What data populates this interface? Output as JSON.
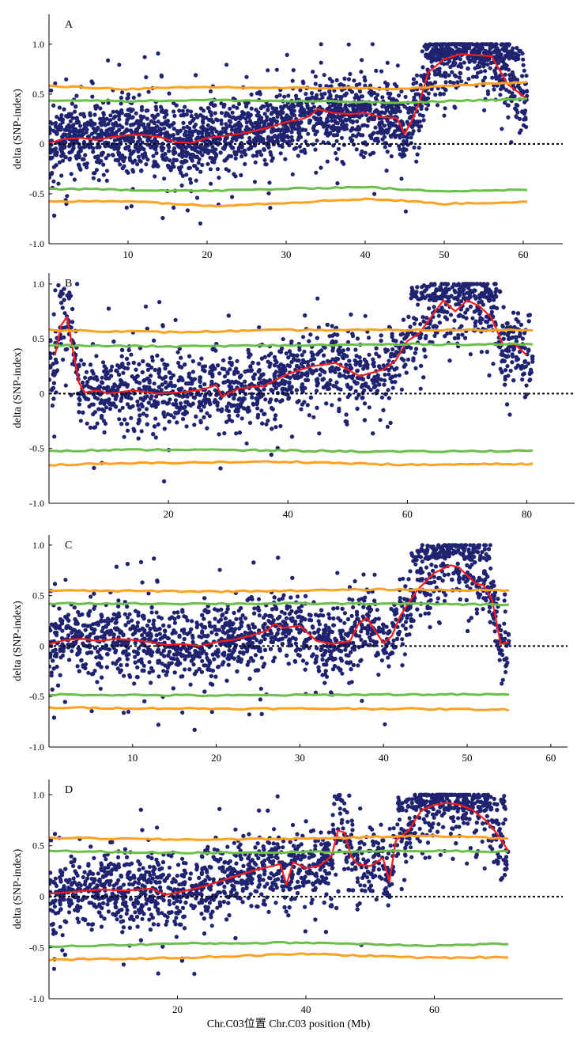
{
  "figure": {
    "xlabel": "Chr.C03位置 Chr.C03 position (Mb)",
    "ylabel": "delta (SNP-index)"
  },
  "colors": {
    "snp_points": "#1f2370",
    "delta_line": "#ff1a1a",
    "ci95": "#6cc04a",
    "ci99": "#ffa020",
    "zero_line": "#000000"
  },
  "chart_data": [
    {
      "type": "scatter",
      "panel": "A",
      "xlim": [
        0,
        65
      ],
      "ylim": [
        -1.0,
        1.3
      ],
      "xticks": [
        10,
        20,
        30,
        40,
        50,
        60
      ],
      "yticks": [
        -1.0,
        -0.5,
        0,
        0.5,
        1.0
      ],
      "ytick_labels": [
        "-1.0",
        "-0.5",
        "0",
        "0.5",
        "1.0"
      ],
      "scatter_xmax": 60.5,
      "series": [
        {
          "role": "delta",
          "x": [
            0,
            2,
            4,
            6,
            8,
            10,
            12,
            14,
            16,
            18,
            20,
            22,
            24,
            26,
            28,
            30,
            32,
            33,
            34,
            36,
            38,
            40,
            42,
            44,
            45,
            46,
            47,
            48,
            50,
            52,
            54,
            56,
            58,
            60.5
          ],
          "y": [
            0.01,
            0.05,
            0.06,
            0.04,
            0.07,
            0.09,
            0.09,
            0.07,
            0.02,
            0.01,
            0.06,
            0.08,
            0.1,
            0.13,
            0.17,
            0.22,
            0.25,
            0.28,
            0.35,
            0.31,
            0.3,
            0.31,
            0.27,
            0.26,
            0.1,
            0.25,
            0.45,
            0.72,
            0.85,
            0.9,
            0.89,
            0.88,
            0.6,
            0.45
          ]
        },
        {
          "role": "ci95_upper",
          "x": [
            0,
            10,
            20,
            30,
            40,
            45,
            50,
            60.5
          ],
          "y": [
            0.44,
            0.43,
            0.44,
            0.43,
            0.42,
            0.41,
            0.43,
            0.45
          ]
        },
        {
          "role": "ci99_upper",
          "x": [
            0,
            10,
            20,
            30,
            40,
            45,
            50,
            60.5
          ],
          "y": [
            0.58,
            0.55,
            0.57,
            0.56,
            0.56,
            0.55,
            0.58,
            0.62
          ]
        },
        {
          "role": "ci95_lower",
          "x": [
            0,
            10,
            20,
            30,
            40,
            45,
            50,
            60.5
          ],
          "y": [
            -0.45,
            -0.46,
            -0.47,
            -0.45,
            -0.43,
            -0.46,
            -0.47,
            -0.46
          ]
        },
        {
          "role": "ci99_lower",
          "x": [
            0,
            10,
            20,
            30,
            40,
            45,
            50,
            60.5
          ],
          "y": [
            -0.58,
            -0.57,
            -0.62,
            -0.59,
            -0.55,
            -0.57,
            -0.6,
            -0.58
          ]
        }
      ]
    },
    {
      "type": "scatter",
      "panel": "B",
      "xlim": [
        0,
        88
      ],
      "ylim": [
        -1.0,
        1.1
      ],
      "xticks": [
        20,
        40,
        60,
        80
      ],
      "yticks": [
        -1.0,
        -0.5,
        0,
        0.5,
        1.0
      ],
      "ytick_labels": [
        "-1.0",
        "-0.5",
        "0",
        "0.5",
        "1.0"
      ],
      "scatter_xmax": 81,
      "series": [
        {
          "role": "delta",
          "x": [
            1,
            2,
            3,
            4,
            5,
            6,
            8,
            10,
            14,
            18,
            22,
            26,
            28,
            29,
            30,
            32,
            36,
            40,
            44,
            48,
            52,
            56,
            58,
            60,
            62,
            64,
            66,
            67,
            68,
            70,
            72,
            74,
            76,
            78,
            80
          ],
          "y": [
            0.35,
            0.62,
            0.7,
            0.4,
            0.1,
            0.01,
            0.03,
            0.0,
            0.03,
            0.0,
            0.01,
            0.04,
            0.08,
            -0.03,
            0.0,
            0.05,
            0.07,
            0.18,
            0.25,
            0.28,
            0.16,
            0.22,
            0.3,
            0.48,
            0.55,
            0.7,
            0.85,
            0.8,
            0.75,
            0.85,
            0.8,
            0.7,
            0.45,
            0.45,
            0.35
          ]
        },
        {
          "role": "ci95_upper",
          "x": [
            0,
            20,
            40,
            60,
            81
          ],
          "y": [
            0.44,
            0.43,
            0.44,
            0.45,
            0.45
          ]
        },
        {
          "role": "ci99_upper",
          "x": [
            0,
            20,
            40,
            60,
            81
          ],
          "y": [
            0.58,
            0.56,
            0.58,
            0.58,
            0.58
          ]
        },
        {
          "role": "ci95_lower",
          "x": [
            0,
            20,
            40,
            60,
            81
          ],
          "y": [
            -0.52,
            -0.51,
            -0.52,
            -0.53,
            -0.52
          ]
        },
        {
          "role": "ci99_lower",
          "x": [
            0,
            20,
            40,
            60,
            81
          ],
          "y": [
            -0.65,
            -0.63,
            -0.62,
            -0.65,
            -0.64
          ]
        }
      ]
    },
    {
      "type": "scatter",
      "panel": "C",
      "xlim": [
        0,
        62
      ],
      "ylim": [
        -1.0,
        1.1
      ],
      "xticks": [
        10,
        20,
        30,
        40,
        50,
        60
      ],
      "yticks": [
        -1.0,
        -0.5,
        0,
        0.5,
        1.0
      ],
      "ytick_labels": [
        "-1.0",
        "-0.5",
        "0",
        "0.5",
        "1.0"
      ],
      "scatter_xmax": 55,
      "series": [
        {
          "role": "delta",
          "x": [
            0,
            2,
            4,
            6,
            8,
            10,
            12,
            14,
            16,
            18,
            20,
            22,
            24,
            26,
            27,
            28,
            30,
            32,
            34,
            36,
            37,
            38,
            39,
            40,
            41,
            42,
            44,
            46,
            48,
            49,
            50,
            51,
            52,
            53,
            54,
            55
          ],
          "y": [
            0.02,
            0.06,
            0.07,
            0.05,
            0.07,
            0.06,
            0.04,
            0.01,
            0.02,
            0.0,
            0.04,
            0.06,
            0.1,
            0.15,
            0.22,
            0.18,
            0.2,
            0.05,
            0.02,
            0.05,
            0.22,
            0.28,
            0.15,
            0.03,
            0.1,
            0.3,
            0.55,
            0.72,
            0.8,
            0.78,
            0.7,
            0.62,
            0.6,
            0.45,
            0.02,
            0.04
          ]
        },
        {
          "role": "ci95_upper",
          "x": [
            0,
            20,
            40,
            55
          ],
          "y": [
            0.42,
            0.42,
            0.42,
            0.41
          ]
        },
        {
          "role": "ci99_upper",
          "x": [
            0,
            20,
            40,
            55
          ],
          "y": [
            0.55,
            0.54,
            0.56,
            0.55
          ]
        },
        {
          "role": "ci95_lower",
          "x": [
            0,
            20,
            40,
            55
          ],
          "y": [
            -0.48,
            -0.49,
            -0.48,
            -0.48
          ]
        },
        {
          "role": "ci99_lower",
          "x": [
            0,
            20,
            40,
            55
          ],
          "y": [
            -0.61,
            -0.62,
            -0.62,
            -0.63
          ]
        }
      ]
    },
    {
      "type": "scatter",
      "panel": "D",
      "xlim": [
        0,
        80
      ],
      "ylim": [
        -1.0,
        1.15
      ],
      "xticks": [
        20,
        40,
        60
      ],
      "yticks": [
        -1.0,
        -0.5,
        0,
        0.5,
        1.0
      ],
      "ytick_labels": [
        "-1.0",
        "-0.5",
        "0",
        "0.5",
        "1.0"
      ],
      "scatter_xmax": 71.5,
      "series": [
        {
          "role": "delta",
          "x": [
            0,
            4,
            8,
            12,
            16,
            18,
            20,
            24,
            28,
            32,
            36,
            37,
            38,
            40,
            42,
            44,
            45,
            46,
            47,
            48,
            50,
            52,
            53,
            54,
            56,
            58,
            60,
            62,
            64,
            66,
            68,
            70,
            71.5
          ],
          "y": [
            0.03,
            0.05,
            0.07,
            0.06,
            0.08,
            0.02,
            0.04,
            0.1,
            0.18,
            0.26,
            0.32,
            0.12,
            0.34,
            0.28,
            0.3,
            0.4,
            0.65,
            0.63,
            0.4,
            0.32,
            0.3,
            0.38,
            0.15,
            0.55,
            0.65,
            0.85,
            0.9,
            0.92,
            0.9,
            0.85,
            0.75,
            0.6,
            0.45
          ]
        },
        {
          "role": "ci95_upper",
          "x": [
            0,
            20,
            40,
            60,
            71.5
          ],
          "y": [
            0.45,
            0.43,
            0.44,
            0.45,
            0.44
          ]
        },
        {
          "role": "ci99_upper",
          "x": [
            0,
            20,
            40,
            60,
            71.5
          ],
          "y": [
            0.58,
            0.56,
            0.57,
            0.6,
            0.57
          ]
        },
        {
          "role": "ci95_lower",
          "x": [
            0,
            20,
            40,
            60,
            71.5
          ],
          "y": [
            -0.49,
            -0.46,
            -0.45,
            -0.48,
            -0.46
          ]
        },
        {
          "role": "ci99_lower",
          "x": [
            0,
            20,
            40,
            60,
            71.5
          ],
          "y": [
            -0.62,
            -0.6,
            -0.56,
            -0.6,
            -0.59
          ]
        }
      ]
    }
  ]
}
